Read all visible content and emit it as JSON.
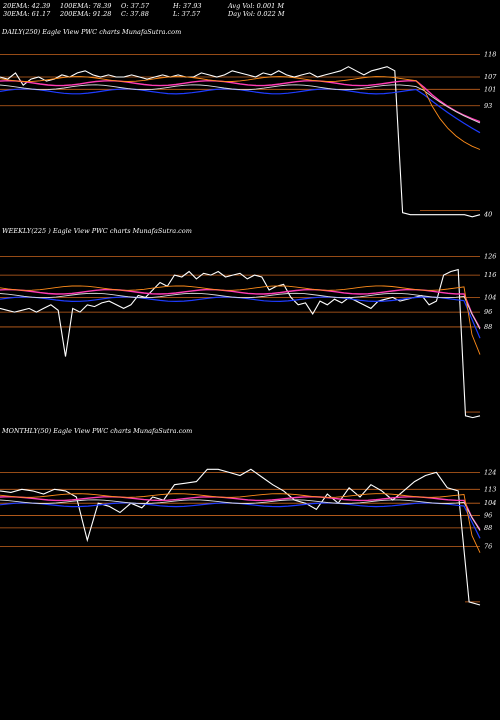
{
  "header": {
    "row1": [
      "20EMA: 42.39",
      "100EMA: 78.39",
      "O: 37.57",
      "H: 37.93",
      "Avg Vol: 0.001 M"
    ],
    "row2": [
      "30EMA: 61.17",
      "200EMA: 91.28",
      "C: 37.88",
      "L: 37.57",
      "Day Vol: 0.022  M"
    ]
  },
  "colors": {
    "background": "#000000",
    "price": "#ffffff",
    "ema_blue": "#1e3cff",
    "ema_pink": "#ff3cb4",
    "ema_white": "#dcdcdc",
    "ema_orange": "#ff8c1a",
    "level_line": "#c8641e"
  },
  "chart_data": [
    {
      "type": "line",
      "title": "DAILY(250) Eagle   View  PWC charts MunafaSutra.com",
      "right_tick_labels": [
        "118",
        "107",
        "101",
        "93",
        "40"
      ],
      "level_lines": [
        118,
        107,
        101,
        93
      ],
      "ylim": [
        35,
        125
      ],
      "price_points": [
        107,
        106,
        109,
        103,
        106,
        107,
        105,
        106,
        108,
        107,
        109,
        110,
        108,
        107,
        108,
        107,
        107,
        108,
        107,
        106,
        107,
        108,
        107,
        108,
        107,
        107,
        109,
        108,
        107,
        108,
        110,
        109,
        108,
        107,
        109,
        108,
        110,
        108,
        107,
        108,
        109,
        107,
        108,
        109,
        110,
        112,
        110,
        108,
        110,
        111,
        112,
        110,
        41,
        40,
        40,
        40,
        40,
        40,
        40,
        40,
        40,
        39,
        40
      ]
    },
    {
      "type": "line",
      "title": "WEEKLY(225                                          ) Eagle   View  PWC charts MunafaSutra.com",
      "right_tick_labels": [
        "126",
        "116",
        "104",
        "96",
        "88"
      ],
      "level_lines": [
        126,
        116,
        104,
        96,
        88
      ],
      "ylim": [
        35,
        135
      ],
      "price_points": [
        98,
        97,
        96,
        97,
        98,
        96,
        98,
        100,
        97,
        72,
        98,
        96,
        100,
        99,
        101,
        102,
        100,
        98,
        100,
        105,
        104,
        108,
        112,
        110,
        116,
        115,
        118,
        114,
        117,
        116,
        118,
        115,
        116,
        117,
        114,
        116,
        115,
        108,
        110,
        111,
        104,
        100,
        101,
        95,
        102,
        100,
        103,
        101,
        104,
        102,
        100,
        98,
        102,
        103,
        104,
        102,
        103,
        104,
        105,
        100,
        102,
        116,
        118,
        119,
        40,
        39,
        40
      ]
    },
    {
      "type": "line",
      "title": "MONTHLY(50) Eagle   View  PWC charts MunafaSutra.com",
      "right_tick_labels": [
        "124",
        "113",
        "104",
        "96",
        "88",
        "76"
      ],
      "level_lines": [
        124,
        113,
        104,
        96,
        88,
        76
      ],
      "ylim": [
        25,
        145
      ],
      "price_points": [
        112,
        111,
        113,
        112,
        110,
        113,
        112,
        108,
        80,
        104,
        102,
        98,
        104,
        101,
        108,
        106,
        116,
        117,
        118,
        126,
        126,
        124,
        122,
        126,
        121,
        116,
        112,
        106,
        104,
        100,
        110,
        104,
        114,
        108,
        116,
        112,
        106,
        112,
        118,
        122,
        124,
        114,
        112,
        40,
        38
      ]
    }
  ]
}
